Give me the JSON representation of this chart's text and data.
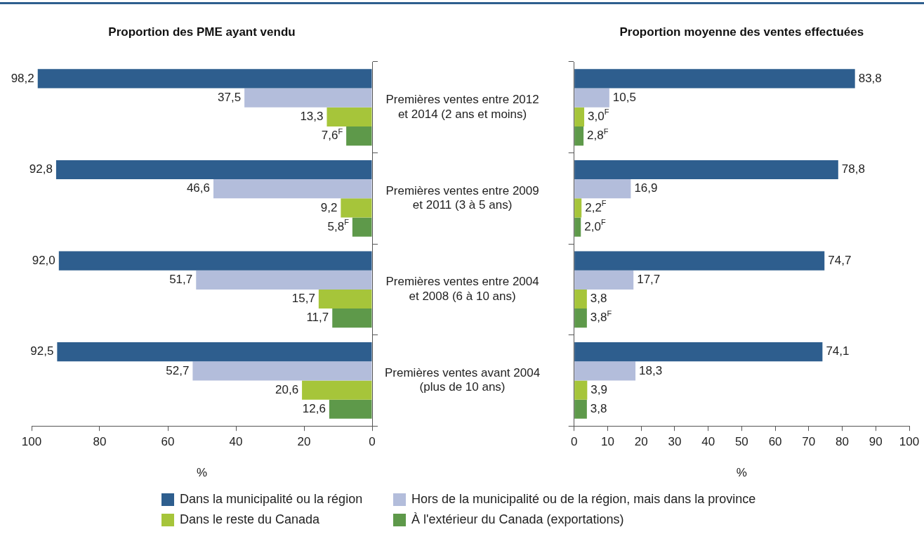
{
  "chart_data": [
    {
      "type": "bar",
      "orientation": "horizontal",
      "title": "Proportion des PME ayant vendu",
      "xlabel": "%",
      "legend": "bottom",
      "categories": [
        "Premières ventes entre 2012\net 2014 (2 ans et moins)",
        "Premières ventes entre 2009\net 2011 (3 à 5 ans)",
        "Premières ventes entre 2004\net 2008 (6 à 10 ans)",
        "Premières ventes avant 2004\n(plus de 10 ans)"
      ],
      "xlim": [
        100,
        0
      ],
      "xticks": [
        100,
        80,
        60,
        40,
        20,
        0
      ],
      "series": [
        {
          "name": "Dans la municipalité ou la région",
          "color": "#2e5e8e",
          "values": [
            98.2,
            92.8,
            92.0,
            92.5
          ],
          "value_labels": [
            "98,2",
            "92,8",
            "92,0",
            "92,5"
          ]
        },
        {
          "name": "Hors de la municipalité ou de la région, mais dans la province",
          "color": "#b3bddb",
          "values": [
            37.5,
            46.6,
            51.7,
            52.7
          ],
          "value_labels": [
            "37,5",
            "46,6",
            "51,7",
            "52,7"
          ]
        },
        {
          "name": "Dans le reste du Canada",
          "color": "#a6c53a",
          "values": [
            13.3,
            9.2,
            15.7,
            20.6
          ],
          "value_labels": [
            "13,3",
            "9,2",
            "15,7",
            "20,6"
          ]
        },
        {
          "name": "À l'extérieur du Canada (exportations)",
          "color": "#5e994a",
          "values": [
            7.6,
            5.8,
            11.7,
            12.6
          ],
          "value_labels": [
            "7,6$^{F}$",
            "5,8$^{F}$",
            "11,7",
            "12,6"
          ]
        }
      ]
    },
    {
      "type": "bar",
      "orientation": "horizontal",
      "title": "Proportion moyenne des ventes effectuées",
      "xlabel": "%",
      "tick_labels": "x",
      "categories": [
        null,
        null,
        null,
        null
      ],
      "xlim": [
        0,
        100
      ],
      "xticks": [
        0,
        10,
        20,
        30,
        40,
        50,
        60,
        70,
        80,
        90,
        100
      ],
      "series": [
        {
          "color": "#2e5e8e",
          "values": [
            83.8,
            78.8,
            74.7,
            74.1
          ],
          "value_labels": [
            "83,8",
            "78,8",
            "74,7",
            "74,1"
          ]
        },
        {
          "color": "#b3bddb",
          "values": [
            10.5,
            16.9,
            17.7,
            18.3
          ],
          "value_labels": [
            "10,5",
            "16,9",
            "17,7",
            "18,3"
          ]
        },
        {
          "color": "#a6c53a",
          "values": [
            3.0,
            2.2,
            3.8,
            3.9
          ],
          "value_labels": [
            "3,0$^{F}$",
            "2,2$^{F}$",
            "3,8",
            "3,9"
          ]
        },
        {
          "color": "#5e994a",
          "values": [
            2.8,
            2.0,
            3.8,
            3.8
          ],
          "value_labels": [
            "2,8$^{F}$",
            "2,0$^{F}$",
            "3,8$^{F}$",
            "3,8"
          ]
        }
      ]
    }
  ]
}
